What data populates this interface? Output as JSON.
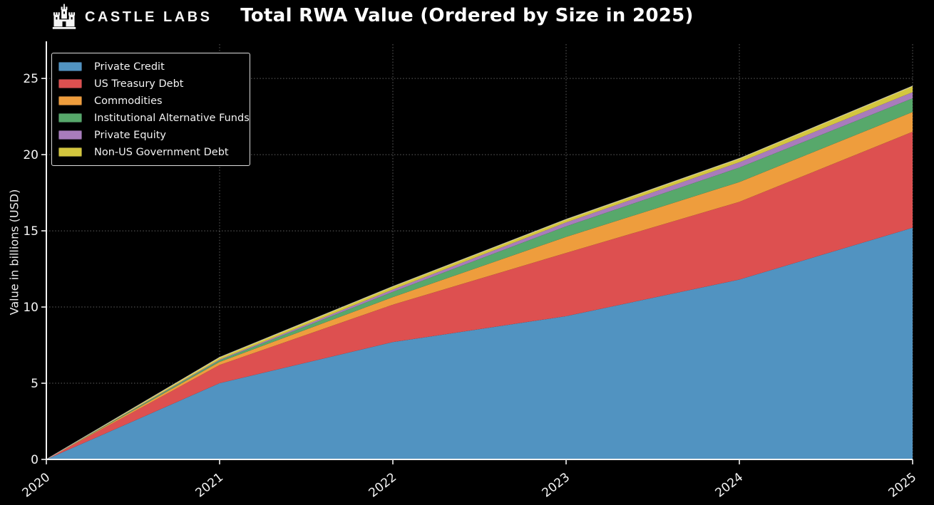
{
  "header": {
    "brand": "CASTLE LABS",
    "title": "Total RWA Value (Ordered by Size in 2025)"
  },
  "chart_data": {
    "type": "area",
    "stacked": true,
    "title": "Total RWA Value (Ordered by Size in 2025)",
    "xlabel": "",
    "ylabel": "Value in billions (USD)",
    "x": [
      2020,
      2021,
      2022,
      2023,
      2024,
      2025
    ],
    "xlim": [
      2020,
      2025
    ],
    "ylim": [
      0,
      27.25
    ],
    "yticks": [
      0,
      5,
      10,
      15,
      20,
      25
    ],
    "grid": "dotted",
    "legend_position": "upper left",
    "background": "#000000",
    "axis_color": "#f2f2f2",
    "series": [
      {
        "name": "Private Credit",
        "color": "#5193c1",
        "values": [
          0,
          5.0,
          7.7,
          9.4,
          11.8,
          15.2
        ]
      },
      {
        "name": "US Treasury Debt",
        "color": "#dd5050",
        "values": [
          0,
          1.2,
          2.45,
          4.15,
          5.1,
          6.3
        ]
      },
      {
        "name": "Commodities",
        "color": "#ee9d3d",
        "values": [
          0,
          0.2,
          0.5,
          1.05,
          1.3,
          1.3
        ]
      },
      {
        "name": "Institutional Alternative Funds",
        "color": "#57a86b",
        "values": [
          0,
          0.1,
          0.35,
          0.7,
          0.95,
          0.9
        ]
      },
      {
        "name": "Private Equity",
        "color": "#a87cbc",
        "values": [
          0,
          0.05,
          0.15,
          0.25,
          0.35,
          0.4
        ]
      },
      {
        "name": "Non-US Government Debt",
        "color": "#d3c63e",
        "values": [
          0,
          0.15,
          0.2,
          0.2,
          0.25,
          0.4
        ]
      }
    ],
    "stack_totals": [
      0,
      6.7,
      11.35,
      15.75,
      19.75,
      24.5
    ]
  }
}
